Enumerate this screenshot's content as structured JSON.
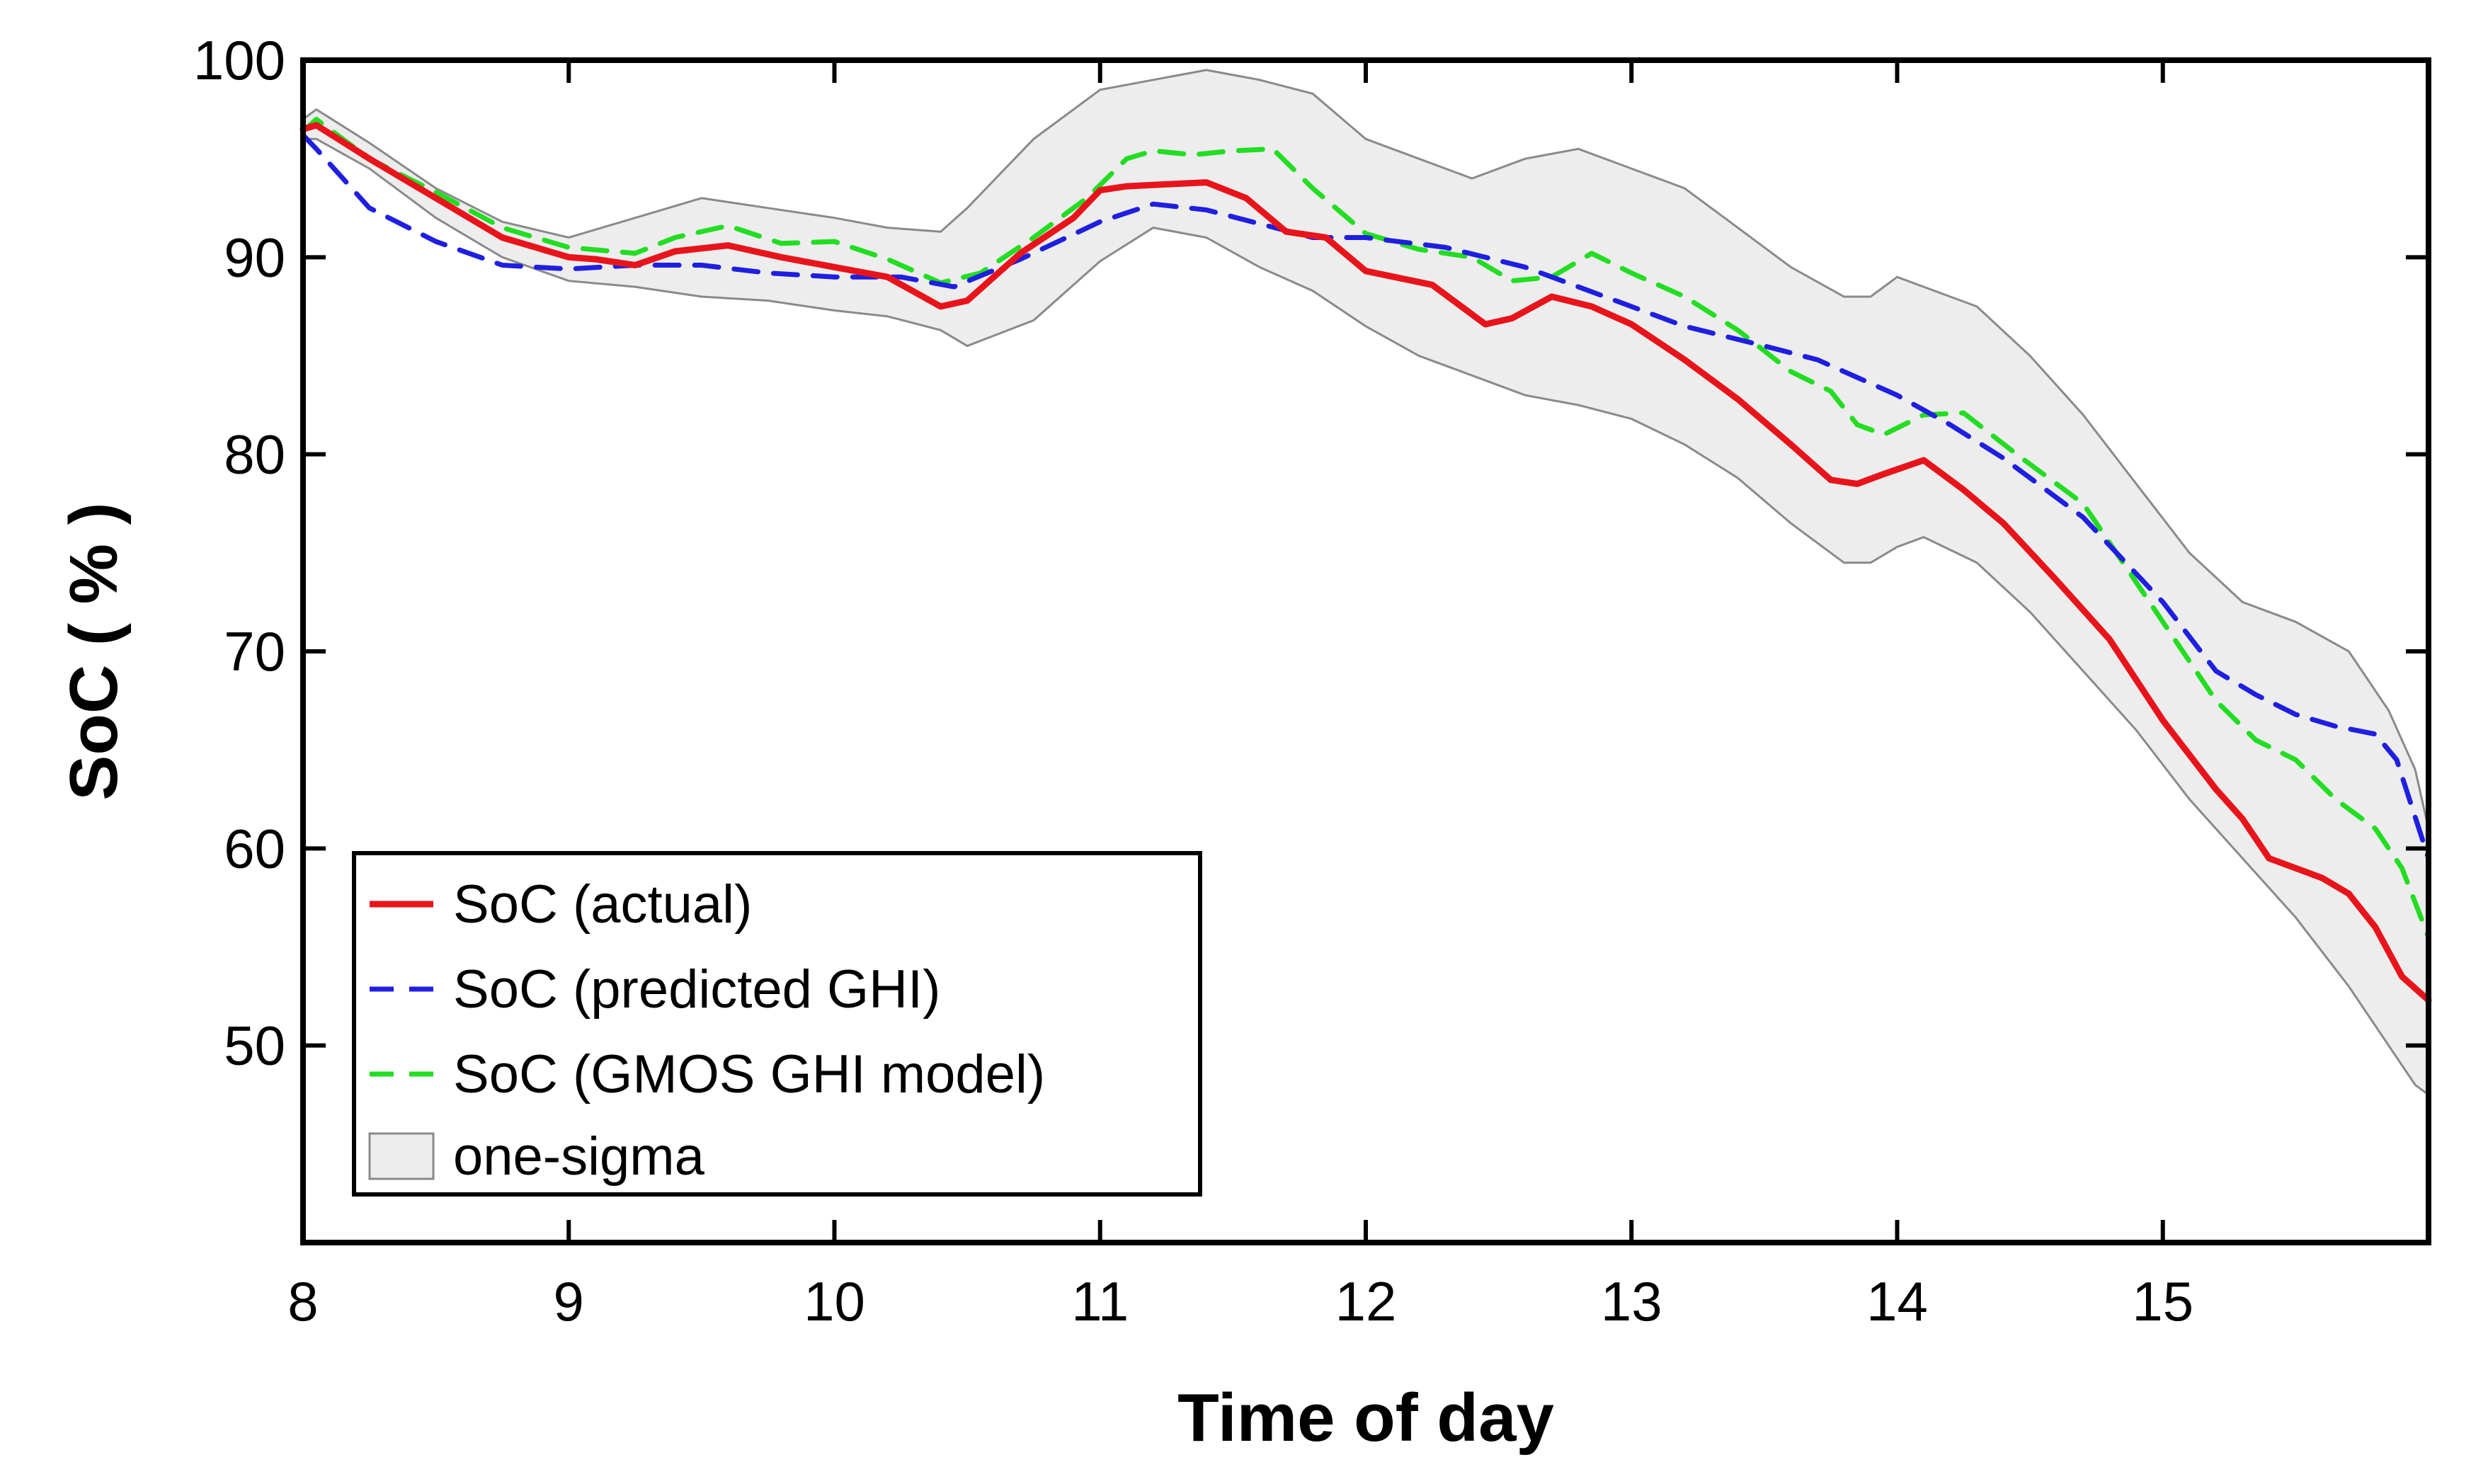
{
  "chart_data": {
    "type": "line",
    "xlabel": "Time of day",
    "ylabel": "SoC ( % )",
    "xlim": [
      8,
      16
    ],
    "ylim": [
      40,
      100
    ],
    "xticks": [
      "8",
      "9",
      "10",
      "11",
      "12",
      "13",
      "14",
      "15"
    ],
    "yticks": [
      "50",
      "60",
      "70",
      "80",
      "90",
      "100"
    ],
    "grid": false,
    "legend_position": "bottom-left",
    "series": [
      {
        "name": "SoC (actual)",
        "color": "#e8141b",
        "style": "solid",
        "x": [
          8.0,
          8.05,
          8.25,
          8.5,
          8.75,
          9.0,
          9.1,
          9.25,
          9.4,
          9.6,
          9.8,
          10.0,
          10.2,
          10.4,
          10.5,
          10.7,
          10.9,
          11.0,
          11.1,
          11.25,
          11.4,
          11.55,
          11.7,
          11.85,
          12.0,
          12.25,
          12.45,
          12.55,
          12.7,
          12.85,
          13.0,
          13.2,
          13.4,
          13.6,
          13.75,
          13.85,
          13.95,
          14.1,
          14.25,
          14.4,
          14.6,
          14.8,
          15.0,
          15.2,
          15.3,
          15.4,
          15.5,
          15.6,
          15.7,
          15.8,
          15.9,
          16.0
        ],
        "values": [
          96.5,
          96.7,
          95.0,
          93.0,
          91.0,
          90.0,
          89.9,
          89.6,
          90.3,
          90.6,
          90.0,
          89.5,
          89.0,
          87.5,
          87.8,
          90.2,
          92.0,
          93.4,
          93.6,
          93.7,
          93.8,
          93.0,
          91.3,
          91.0,
          89.3,
          88.6,
          86.6,
          86.9,
          88.0,
          87.5,
          86.6,
          84.8,
          82.8,
          80.5,
          78.7,
          78.5,
          79.0,
          79.7,
          78.2,
          76.5,
          73.6,
          70.6,
          66.5,
          63.0,
          61.5,
          59.5,
          59.0,
          58.5,
          57.7,
          56.0,
          53.5,
          52.3
        ]
      },
      {
        "name": "SoC (predicted GHI)",
        "color": "#1f1fe0",
        "style": "dashed",
        "x": [
          8.0,
          8.05,
          8.25,
          8.5,
          8.75,
          9.0,
          9.25,
          9.5,
          9.75,
          10.0,
          10.25,
          10.45,
          10.7,
          11.0,
          11.2,
          11.4,
          11.6,
          11.8,
          12.0,
          12.3,
          12.6,
          12.9,
          13.2,
          13.5,
          13.7,
          14.0,
          14.2,
          14.4,
          14.7,
          15.0,
          15.2,
          15.35,
          15.5,
          15.65,
          15.8,
          15.88,
          15.94,
          16.0
        ],
        "values": [
          96.2,
          95.5,
          92.5,
          90.8,
          89.6,
          89.4,
          89.6,
          89.6,
          89.2,
          89.0,
          89.0,
          88.5,
          89.9,
          91.8,
          92.7,
          92.4,
          91.7,
          91.0,
          91.0,
          90.5,
          89.5,
          88.0,
          86.5,
          85.5,
          84.8,
          83.0,
          81.5,
          79.8,
          76.8,
          72.5,
          69.0,
          67.8,
          66.8,
          66.2,
          65.8,
          64.5,
          62.0,
          59.5
        ]
      },
      {
        "name": "SoC (GMOS GHI model)",
        "color": "#22dd22",
        "style": "dashed",
        "x": [
          8.0,
          8.05,
          8.25,
          8.5,
          8.75,
          9.0,
          9.25,
          9.4,
          9.6,
          9.8,
          10.0,
          10.2,
          10.4,
          10.55,
          10.75,
          10.95,
          11.1,
          11.2,
          11.35,
          11.5,
          11.65,
          11.8,
          12.0,
          12.2,
          12.4,
          12.55,
          12.7,
          12.85,
          13.0,
          13.2,
          13.4,
          13.6,
          13.75,
          13.85,
          13.95,
          14.1,
          14.25,
          14.45,
          14.7,
          15.0,
          15.2,
          15.35,
          15.5,
          15.65,
          15.8,
          15.9,
          16.0
        ],
        "values": [
          96.4,
          97.0,
          95.0,
          93.3,
          91.5,
          90.5,
          90.2,
          91.0,
          91.6,
          90.7,
          90.8,
          89.9,
          88.7,
          89.2,
          91.0,
          93.0,
          95.0,
          95.4,
          95.2,
          95.4,
          95.5,
          93.5,
          91.2,
          90.4,
          90.0,
          88.8,
          89.0,
          90.2,
          89.2,
          88.0,
          86.3,
          84.2,
          83.2,
          81.5,
          81.0,
          82.0,
          82.1,
          80.0,
          77.5,
          71.5,
          67.5,
          65.5,
          64.5,
          62.5,
          61.0,
          59.0,
          55.5
        ]
      }
    ],
    "band": {
      "name": "one-sigma",
      "fill": "#ededed",
      "stroke": "#8a8a8a",
      "x": [
        8.0,
        8.05,
        8.25,
        8.5,
        8.75,
        9.0,
        9.25,
        9.5,
        9.75,
        10.0,
        10.2,
        10.4,
        10.5,
        10.75,
        11.0,
        11.2,
        11.4,
        11.6,
        11.8,
        12.0,
        12.2,
        12.4,
        12.6,
        12.8,
        13.0,
        13.2,
        13.4,
        13.6,
        13.8,
        13.9,
        14.0,
        14.1,
        14.3,
        14.5,
        14.7,
        14.9,
        15.1,
        15.3,
        15.5,
        15.7,
        15.85,
        15.95,
        16.0
      ],
      "upper": [
        97.0,
        97.5,
        95.8,
        93.5,
        91.8,
        91.0,
        92.0,
        93.0,
        92.5,
        92.0,
        91.5,
        91.3,
        92.5,
        96.0,
        98.5,
        99.0,
        99.5,
        99.0,
        98.3,
        96.0,
        95.0,
        94.0,
        95.0,
        95.5,
        94.5,
        93.5,
        91.5,
        89.5,
        88.0,
        88.0,
        89.0,
        88.5,
        87.5,
        85.0,
        82.0,
        78.5,
        75.0,
        72.5,
        71.5,
        70.0,
        67.0,
        64.0,
        61.0
      ],
      "lower": [
        96.0,
        96.0,
        94.5,
        92.0,
        90.0,
        88.8,
        88.5,
        88.0,
        87.8,
        87.3,
        87.0,
        86.3,
        85.5,
        86.8,
        89.8,
        91.5,
        91.0,
        89.5,
        88.3,
        86.5,
        85.0,
        84.0,
        83.0,
        82.5,
        81.8,
        80.5,
        78.8,
        76.5,
        74.5,
        74.5,
        75.3,
        75.8,
        74.5,
        72.0,
        69.0,
        66.0,
        62.5,
        59.5,
        56.5,
        53.0,
        50.0,
        48.0,
        47.5
      ]
    }
  }
}
